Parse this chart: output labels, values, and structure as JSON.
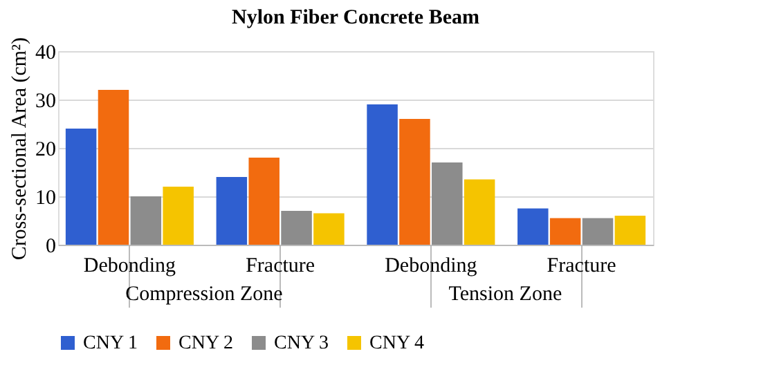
{
  "chart_data": {
    "type": "bar",
    "title": "Nylon Fiber Concrete Beam",
    "ylabel": "Cross-sectional Area  (cm²)",
    "categories": [
      "Debonding",
      "Fracture",
      "Debonding",
      "Fracture"
    ],
    "annotations": [
      "Compression Zone",
      "Tension Zone"
    ],
    "series": [
      {
        "name": "CNY 1",
        "color": "#2f5fd0",
        "values": [
          24,
          14,
          29,
          7.5
        ]
      },
      {
        "name": "CNY 2",
        "color": "#f26b0f",
        "values": [
          32,
          18,
          26,
          5.5
        ]
      },
      {
        "name": "CNY 3",
        "color": "#8c8c8c",
        "values": [
          10,
          7,
          17,
          5.5
        ]
      },
      {
        "name": "CNY 4",
        "color": "#f5c400",
        "values": [
          12,
          6.5,
          13.5,
          6
        ]
      }
    ],
    "ylim": [
      0,
      40
    ],
    "yticks": [
      0,
      10,
      20,
      30,
      40
    ],
    "grid": "y",
    "legend": "bottom"
  }
}
